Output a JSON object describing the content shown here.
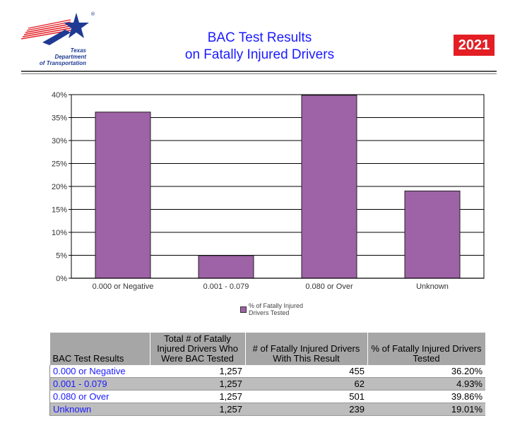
{
  "header": {
    "logo_lines": [
      "Texas",
      "Department",
      "of Transportation"
    ],
    "logo_mark": "®",
    "title_line1": "BAC Test Results",
    "title_line2": "on Fatally Injured Drivers",
    "year": "2021"
  },
  "colors": {
    "bar": "#9e62a6",
    "title": "#1a1aff",
    "year_bg": "#e31e24",
    "logo_blue": "#1f3a93"
  },
  "chart_data": {
    "type": "bar",
    "categories": [
      "0.000 or Negative",
      "0.001 - 0.079",
      "0.080 or Over",
      "Unknown"
    ],
    "values": [
      36.2,
      4.93,
      39.86,
      19.01
    ],
    "series": [
      {
        "name": "% of Fatally Injured Drivers Tested",
        "values": [
          36.2,
          4.93,
          39.86,
          19.01
        ]
      }
    ],
    "ylim": [
      0,
      40
    ],
    "yticks": [
      "0%",
      "5%",
      "10%",
      "15%",
      "20%",
      "25%",
      "30%",
      "35%",
      "40%"
    ],
    "grid": true,
    "legend_lines": [
      "% of Fatally Injured",
      "Drivers Tested"
    ],
    "legend_position": "bottom-center"
  },
  "table": {
    "headers": [
      "BAC Test Results",
      "Total # of Fatally Injured Drivers Who Were BAC Tested",
      "# of Fatally Injured Drivers With This Result",
      "% of Fatally Injured Drivers Tested"
    ],
    "rows": [
      {
        "label": "0.000 or Negative",
        "tested": "1,257",
        "count": "455",
        "pct": "36.20%"
      },
      {
        "label": "0.001 - 0.079",
        "tested": "1,257",
        "count": "62",
        "pct": "4.93%"
      },
      {
        "label": "0.080 or Over",
        "tested": "1,257",
        "count": "501",
        "pct": "39.86%"
      },
      {
        "label": "Unknown",
        "tested": "1,257",
        "count": "239",
        "pct": "19.01%"
      }
    ]
  }
}
